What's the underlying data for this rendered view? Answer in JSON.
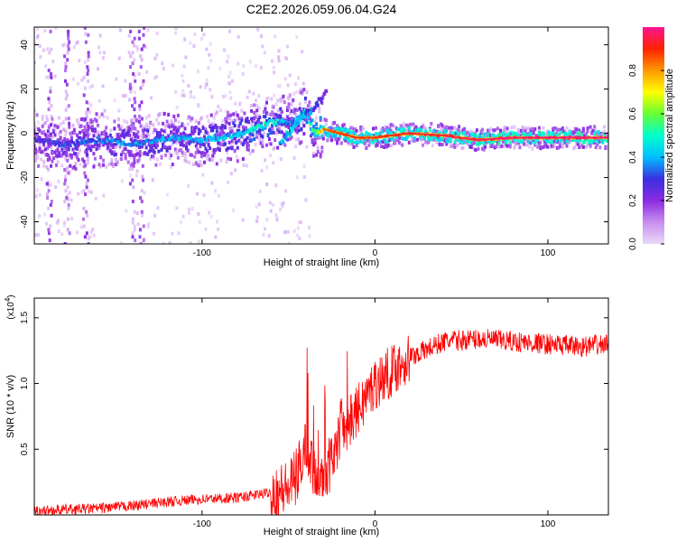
{
  "title": "C2E2.2026.059.06.04.G24",
  "colors": {
    "snr_line": "#ff0000",
    "colormap": [
      "#e8d8f8",
      "#c98ef0",
      "#8a2be2",
      "#3a2fe0",
      "#00bfff",
      "#00ffcc",
      "#66ff33",
      "#ffff00",
      "#ff9900",
      "#ff2200",
      "#ff1493"
    ]
  },
  "chart_data": [
    {
      "type": "heatmap",
      "title": "C2E2.2026.059.06.04.G24",
      "xlabel": "Height of straight line (km)",
      "ylabel": "Frequency (Hz)",
      "xlim": [
        -197,
        135
      ],
      "ylim": [
        -50,
        48
      ],
      "xticks": [
        -100,
        0,
        100
      ],
      "xtick_labels": [
        "-100",
        "0",
        "100"
      ],
      "yticks": [
        -40,
        -20,
        0,
        20,
        40
      ],
      "ytick_labels": [
        "-40",
        "-20",
        "0",
        "20",
        "40"
      ],
      "colorbar": {
        "label": "Normalized spectral amplitude",
        "range": [
          0,
          1
        ],
        "ticks": [
          0.0,
          0.2,
          0.4,
          0.6,
          0.8
        ],
        "tick_labels": [
          "0.0",
          "0.2",
          "0.4",
          "0.6",
          "0.8"
        ]
      },
      "ridge": [
        {
          "h": -197,
          "f": -3,
          "a": 0.3
        },
        {
          "h": -180,
          "f": -5,
          "a": 0.35
        },
        {
          "h": -160,
          "f": -3,
          "a": 0.4
        },
        {
          "h": -140,
          "f": -5,
          "a": 0.42
        },
        {
          "h": -120,
          "f": -2,
          "a": 0.45
        },
        {
          "h": -100,
          "f": -3,
          "a": 0.45
        },
        {
          "h": -80,
          "f": -1,
          "a": 0.48
        },
        {
          "h": -70,
          "f": 2,
          "a": 0.55
        },
        {
          "h": -60,
          "f": 5,
          "a": 0.55
        },
        {
          "h": -50,
          "f": 5,
          "a": 0.4
        },
        {
          "h": -45,
          "f": 6,
          "a": 0.45
        },
        {
          "h": -40,
          "f": 10,
          "a": 0.55
        },
        {
          "h": -35,
          "f": 0,
          "a": 0.7
        },
        {
          "h": -30,
          "f": 2,
          "a": 0.85
        },
        {
          "h": -20,
          "f": 0,
          "a": 0.9
        },
        {
          "h": -10,
          "f": -2,
          "a": 0.9
        },
        {
          "h": 0,
          "f": -2,
          "a": 0.92
        },
        {
          "h": 20,
          "f": 0,
          "a": 0.93
        },
        {
          "h": 40,
          "f": -1,
          "a": 0.95
        },
        {
          "h": 60,
          "f": -3,
          "a": 0.97
        },
        {
          "h": 80,
          "f": -2,
          "a": 0.98
        },
        {
          "h": 100,
          "f": -2,
          "a": 0.99
        },
        {
          "h": 120,
          "f": -2,
          "a": 0.99
        },
        {
          "h": 135,
          "f": -2,
          "a": 0.99
        }
      ],
      "branch": [
        {
          "h": -55,
          "f": -5,
          "a": 0.45
        },
        {
          "h": -45,
          "f": 5,
          "a": 0.5
        },
        {
          "h": -35,
          "f": 12,
          "a": 0.4
        },
        {
          "h": -28,
          "f": 18,
          "a": 0.25
        }
      ],
      "vertical_streaks_h": [
        -188,
        -178,
        -167,
        -140,
        -135
      ]
    },
    {
      "type": "line",
      "title": "",
      "xlabel": "Height of straight line (km)",
      "ylabel": "SNR (10 * v/v)",
      "y_scale_label": "(x10",
      "y_scale_exponent": "4",
      "y_scale_suffix": ")",
      "xlim": [
        -197,
        135
      ],
      "ylim": [
        0,
        1.65
      ],
      "xticks": [
        -100,
        0,
        100
      ],
      "xtick_labels": [
        "-100",
        "0",
        "100"
      ],
      "yticks": [
        0.5,
        1.0,
        1.5
      ],
      "ytick_labels": [
        "0.5",
        "1.0",
        "1.5"
      ],
      "series": [
        {
          "name": "SNR",
          "x": [
            -197,
            -180,
            -160,
            -140,
            -120,
            -100,
            -80,
            -70,
            -60,
            -50,
            -45,
            -40,
            -35,
            -30,
            -25,
            -20,
            -15,
            -10,
            -5,
            0,
            10,
            20,
            30,
            40,
            50,
            60,
            80,
            100,
            120,
            135
          ],
          "y": [
            0.03,
            0.04,
            0.05,
            0.07,
            0.1,
            0.12,
            0.13,
            0.15,
            0.17,
            0.2,
            0.3,
            0.55,
            0.35,
            0.3,
            0.4,
            0.65,
            0.7,
            0.8,
            0.9,
            1.0,
            1.1,
            1.2,
            1.26,
            1.32,
            1.33,
            1.34,
            1.32,
            1.3,
            1.28,
            1.3
          ]
        }
      ]
    }
  ]
}
